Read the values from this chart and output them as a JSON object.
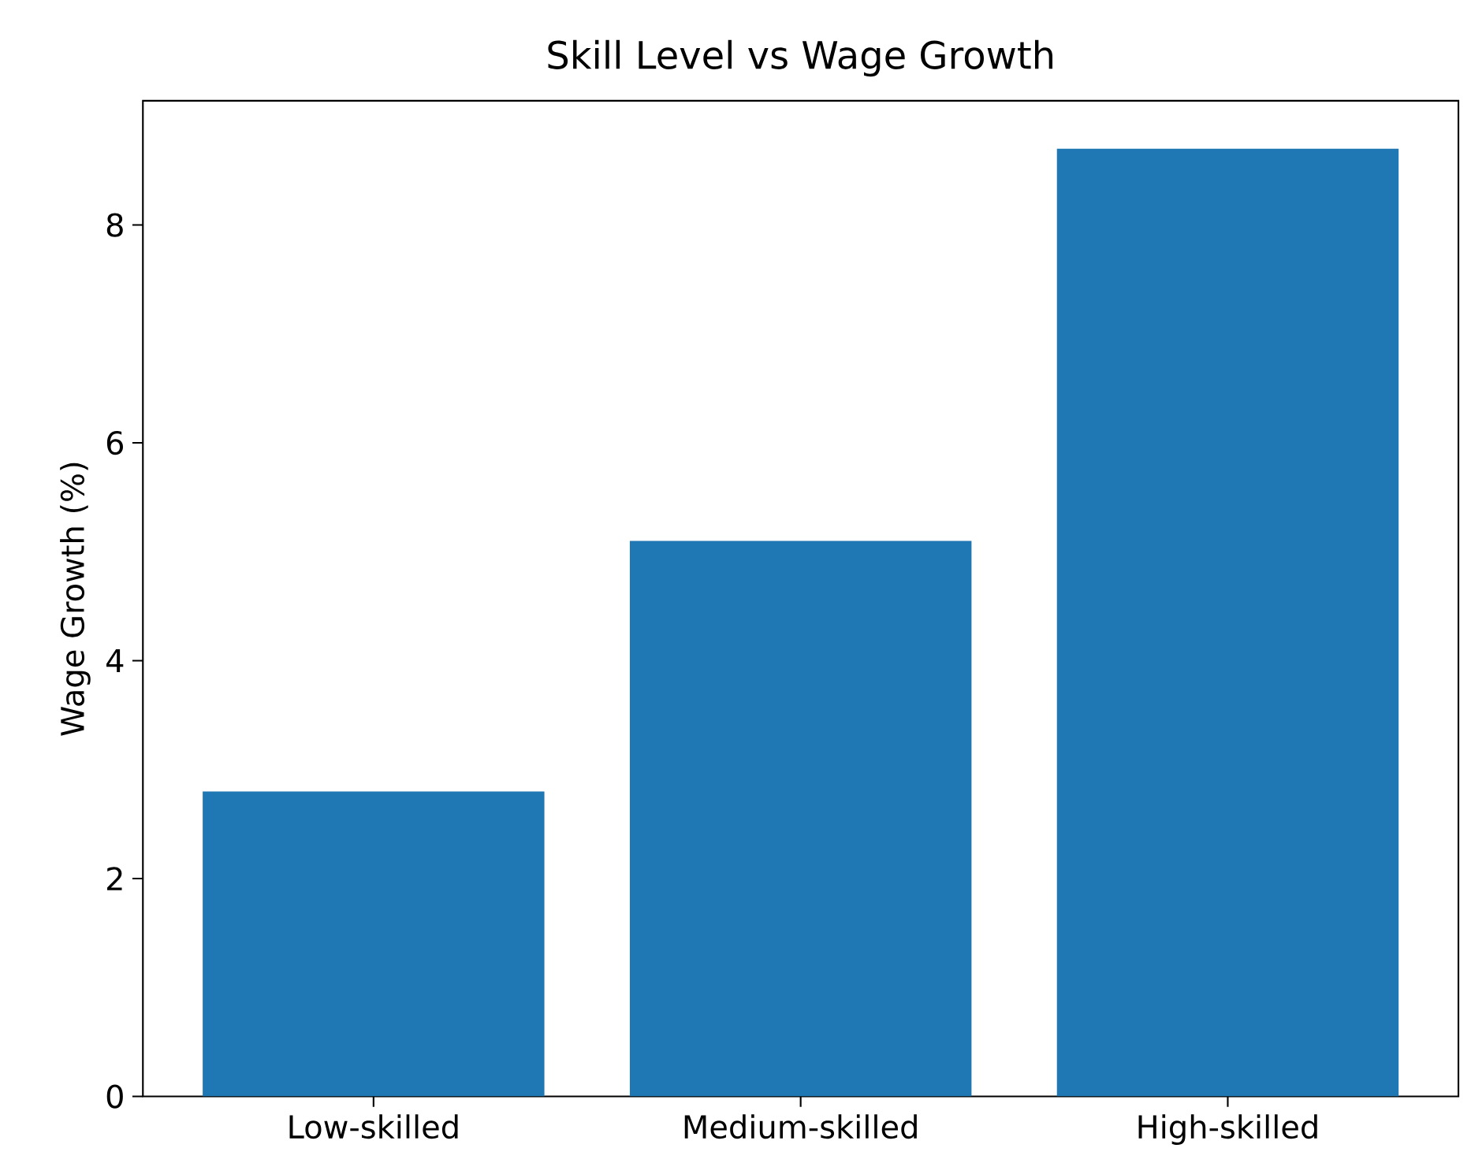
{
  "chart_data": {
    "type": "bar",
    "title": "Skill Level vs Wage Growth",
    "ylabel": "Wage Growth (%)",
    "categories": [
      "Low-skilled",
      "Medium-skilled",
      "High-skilled"
    ],
    "values": [
      2.8,
      5.1,
      8.7
    ],
    "color": "#1f77b4",
    "ylim": [
      0,
      9.14
    ],
    "yticks": [
      0,
      2,
      4,
      6,
      8
    ]
  }
}
